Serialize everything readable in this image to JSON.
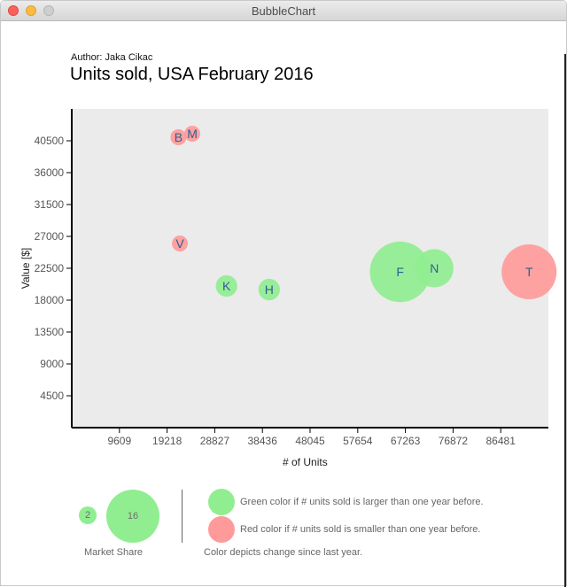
{
  "window": {
    "title": "BubbleChart"
  },
  "header": {
    "author": "Author: Jaka Cikac",
    "title": "Units sold, USA February 2016"
  },
  "colors": {
    "increase": "#90ee90",
    "decrease": "#ff9a9a",
    "bubble_label": "#2f5f8f",
    "plot_bg": "#ebebeb"
  },
  "chart_data": {
    "type": "scatter",
    "title": "Units sold, USA February 2016",
    "xlabel": "# of Units",
    "ylabel": "Value [$]",
    "xlim": [
      0,
      96090
    ],
    "ylim": [
      0,
      45000
    ],
    "x_ticks": [
      9609,
      19218,
      28827,
      38436,
      48045,
      57654,
      67263,
      76872,
      86481
    ],
    "y_ticks": [
      4500,
      9000,
      13500,
      18000,
      22500,
      27000,
      31500,
      36000,
      40500
    ],
    "grid": false,
    "points": [
      {
        "label": "B",
        "x": 21500,
        "y": 41000,
        "change": "decrease",
        "share": 2
      },
      {
        "label": "M",
        "x": 24300,
        "y": 41500,
        "change": "decrease",
        "share": 2
      },
      {
        "label": "V",
        "x": 21800,
        "y": 26000,
        "change": "decrease",
        "share": 2
      },
      {
        "label": "K",
        "x": 31200,
        "y": 20000,
        "change": "increase",
        "share": 3
      },
      {
        "label": "H",
        "x": 39800,
        "y": 19500,
        "change": "increase",
        "share": 3
      },
      {
        "label": "F",
        "x": 66200,
        "y": 22000,
        "change": "increase",
        "share": 10
      },
      {
        "label": "N",
        "x": 73100,
        "y": 22500,
        "change": "increase",
        "share": 6
      },
      {
        "label": "T",
        "x": 92200,
        "y": 22000,
        "change": "decrease",
        "share": 9
      }
    ]
  },
  "legend": {
    "size_examples": [
      {
        "value": "2",
        "share": 2
      },
      {
        "value": "16",
        "share": 16
      }
    ],
    "size_caption": "Market Share",
    "green_text": "Green color if # units sold is larger than one year before.",
    "red_text": "Red color if # units sold is smaller than one year before.",
    "color_caption": "Color depicts change since last year."
  }
}
